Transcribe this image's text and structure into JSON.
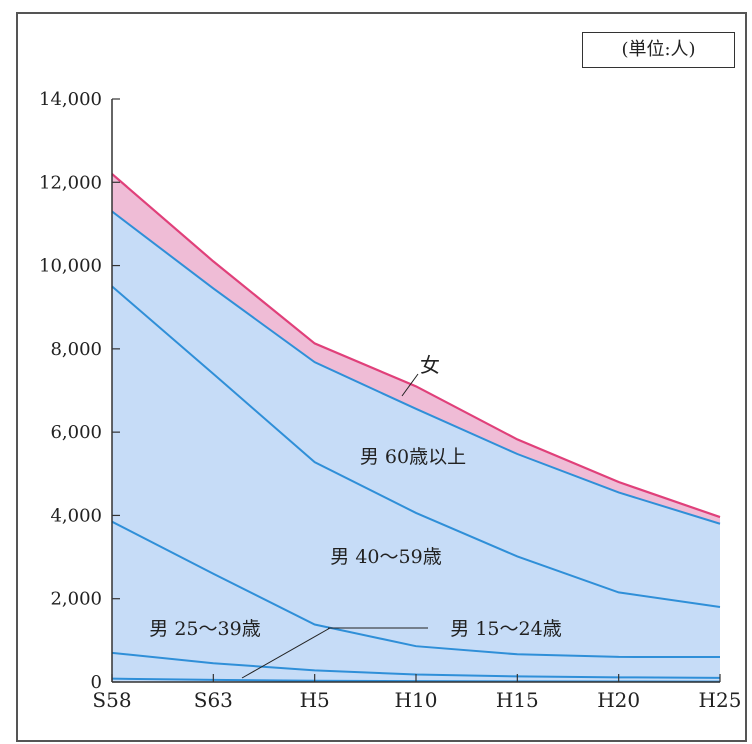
{
  "unit_label": "(単位:人)",
  "chart_data": {
    "type": "area",
    "stacked": true,
    "x": [
      "S58",
      "S63",
      "H5",
      "H10",
      "H15",
      "H20",
      "H25"
    ],
    "ylim": [
      0,
      14000
    ],
    "yticks": [
      0,
      2000,
      4000,
      6000,
      8000,
      10000,
      12000,
      14000
    ],
    "ytick_labels": [
      "0",
      "2,000",
      "4,000",
      "6,000",
      "8,000",
      "10,000",
      "12,000",
      "14,000"
    ],
    "series": [
      {
        "name": "男 15〜24歳",
        "values": [
          80,
          50,
          30,
          20,
          15,
          12,
          10
        ]
      },
      {
        "name": "男 25〜39歳",
        "values": [
          620,
          400,
          250,
          160,
          120,
          100,
          90
        ]
      },
      {
        "name": "男 40〜59歳",
        "values": [
          3150,
          2150,
          1100,
          680,
          530,
          490,
          500
        ]
      },
      {
        "name": "男 60歳以上",
        "values": [
          5650,
          4800,
          3900,
          3200,
          2350,
          1550,
          1200
        ]
      },
      {
        "name": "男 60歳以上",
        "values": [
          1800,
          2050,
          2400,
          2500,
          2460,
          2400,
          2000
        ]
      },
      {
        "name": "女",
        "values": [
          900,
          650,
          450,
          540,
          350,
          250,
          160
        ]
      }
    ],
    "labels": [
      {
        "text": "女"
      },
      {
        "text": "男 60歳以上"
      },
      {
        "text": "男 40〜59歳"
      },
      {
        "text": "男 25〜39歳"
      },
      {
        "text": "男 15〜24歳"
      }
    ],
    "colors": {
      "fill_male": "#c6dcf7",
      "line_male": "#2f8fd8",
      "fill_female": "#efbcd6",
      "line_female": "#e0407a",
      "axis": "#333333"
    }
  }
}
